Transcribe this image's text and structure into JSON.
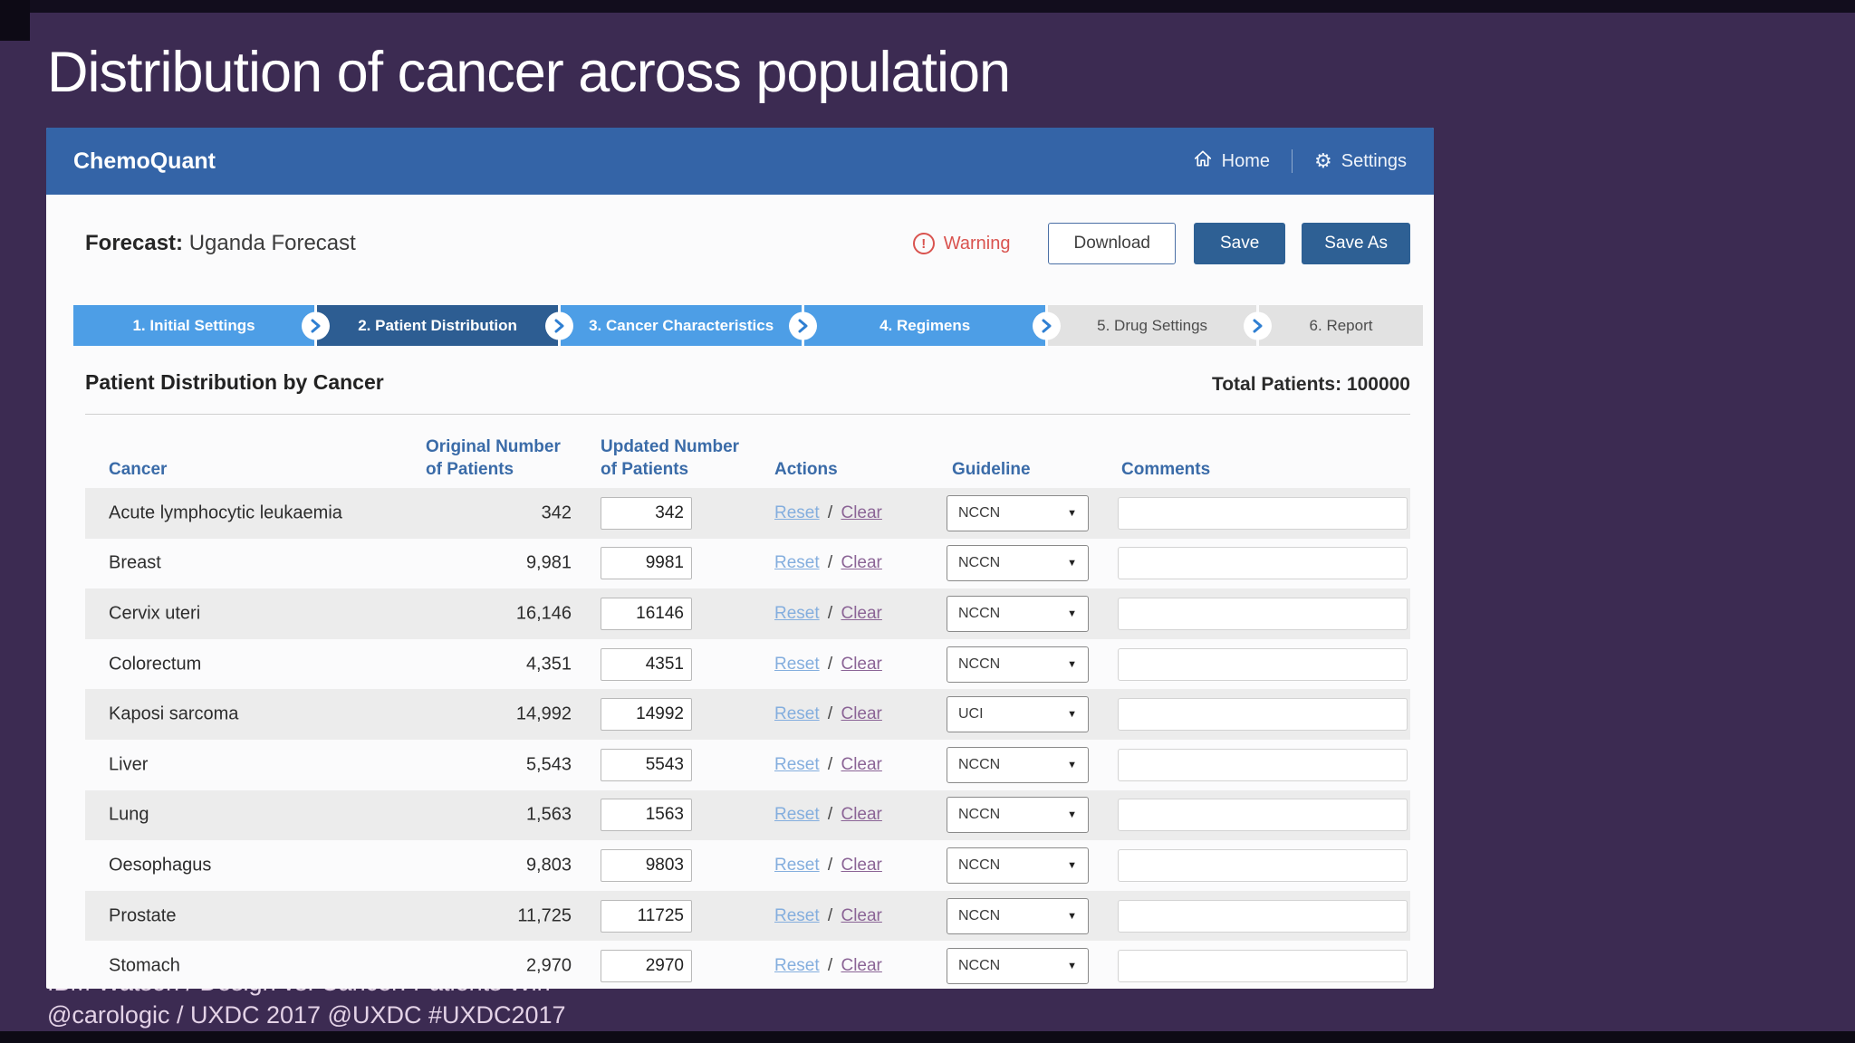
{
  "slide": {
    "title": "Distribution of cancer across population",
    "footer_line1": "IBM Watson  /  Design vs. Cancer: Patients Win",
    "footer_line2": "@carologic  /  UXDC 2017  @UXDC  #UXDC2017"
  },
  "app": {
    "brand": "ChemoQuant",
    "nav": {
      "home": "Home",
      "settings": "Settings"
    },
    "forecast_label": "Forecast:",
    "forecast_name": "Uganda Forecast",
    "warning_label": "Warning",
    "warning_glyph": "!",
    "buttons": {
      "download": "Download",
      "save": "Save",
      "save_as": "Save As"
    },
    "steps": [
      {
        "label": "1. Initial Settings",
        "state": "light"
      },
      {
        "label": "2. Patient Distribution",
        "state": "active"
      },
      {
        "label": "3. Cancer Characteristics",
        "state": "light"
      },
      {
        "label": "4. Regimens",
        "state": "light"
      },
      {
        "label": "5. Drug Settings",
        "state": "gray"
      },
      {
        "label": "6. Report",
        "state": "gray"
      }
    ],
    "section": {
      "title": "Patient Distribution by Cancer",
      "total_patients": "Total Patients: 100000"
    },
    "table": {
      "headers": {
        "cancer": "Cancer",
        "original": [
          "Original Number",
          "of Patients"
        ],
        "updated": [
          "Updated Number",
          "of Patients"
        ],
        "actions": "Actions",
        "guideline": "Guideline",
        "comments": "Comments"
      },
      "actions": {
        "reset": "Reset",
        "separator": "/",
        "clear": "Clear"
      },
      "dropdown_arrow": "▼",
      "rows": [
        {
          "cancer": "Acute lymphocytic leukaemia",
          "original": "342",
          "updated": "342",
          "guideline": "NCCN",
          "comment": ""
        },
        {
          "cancer": "Breast",
          "original": "9,981",
          "updated": "9981",
          "guideline": "NCCN",
          "comment": ""
        },
        {
          "cancer": "Cervix uteri",
          "original": "16,146",
          "updated": "16146",
          "guideline": "NCCN",
          "comment": ""
        },
        {
          "cancer": "Colorectum",
          "original": "4,351",
          "updated": "4351",
          "guideline": "NCCN",
          "comment": ""
        },
        {
          "cancer": "Kaposi sarcoma",
          "original": "14,992",
          "updated": "14992",
          "guideline": "UCI",
          "comment": ""
        },
        {
          "cancer": "Liver",
          "original": "5,543",
          "updated": "5543",
          "guideline": "NCCN",
          "comment": ""
        },
        {
          "cancer": "Lung",
          "original": "1,563",
          "updated": "1563",
          "guideline": "NCCN",
          "comment": ""
        },
        {
          "cancer": "Oesophagus",
          "original": "9,803",
          "updated": "9803",
          "guideline": "NCCN",
          "comment": ""
        },
        {
          "cancer": "Prostate",
          "original": "11,725",
          "updated": "11725",
          "guideline": "NCCN",
          "comment": ""
        },
        {
          "cancer": "Stomach",
          "original": "2,970",
          "updated": "2970",
          "guideline": "NCCN",
          "comment": ""
        }
      ]
    }
  },
  "colors": {
    "background": "#3c2b52",
    "appbar": "#3464a7",
    "step_light": "#4d9ee6",
    "step_active": "#2d5d92",
    "step_gray": "#e2e2e2",
    "primary_button": "#2e6094",
    "warning_red": "#d9534f",
    "header_text": "#3a6ba8",
    "row_stripe": "#ececec",
    "link_reset": "#84aede",
    "link_clear": "#8b6496"
  }
}
